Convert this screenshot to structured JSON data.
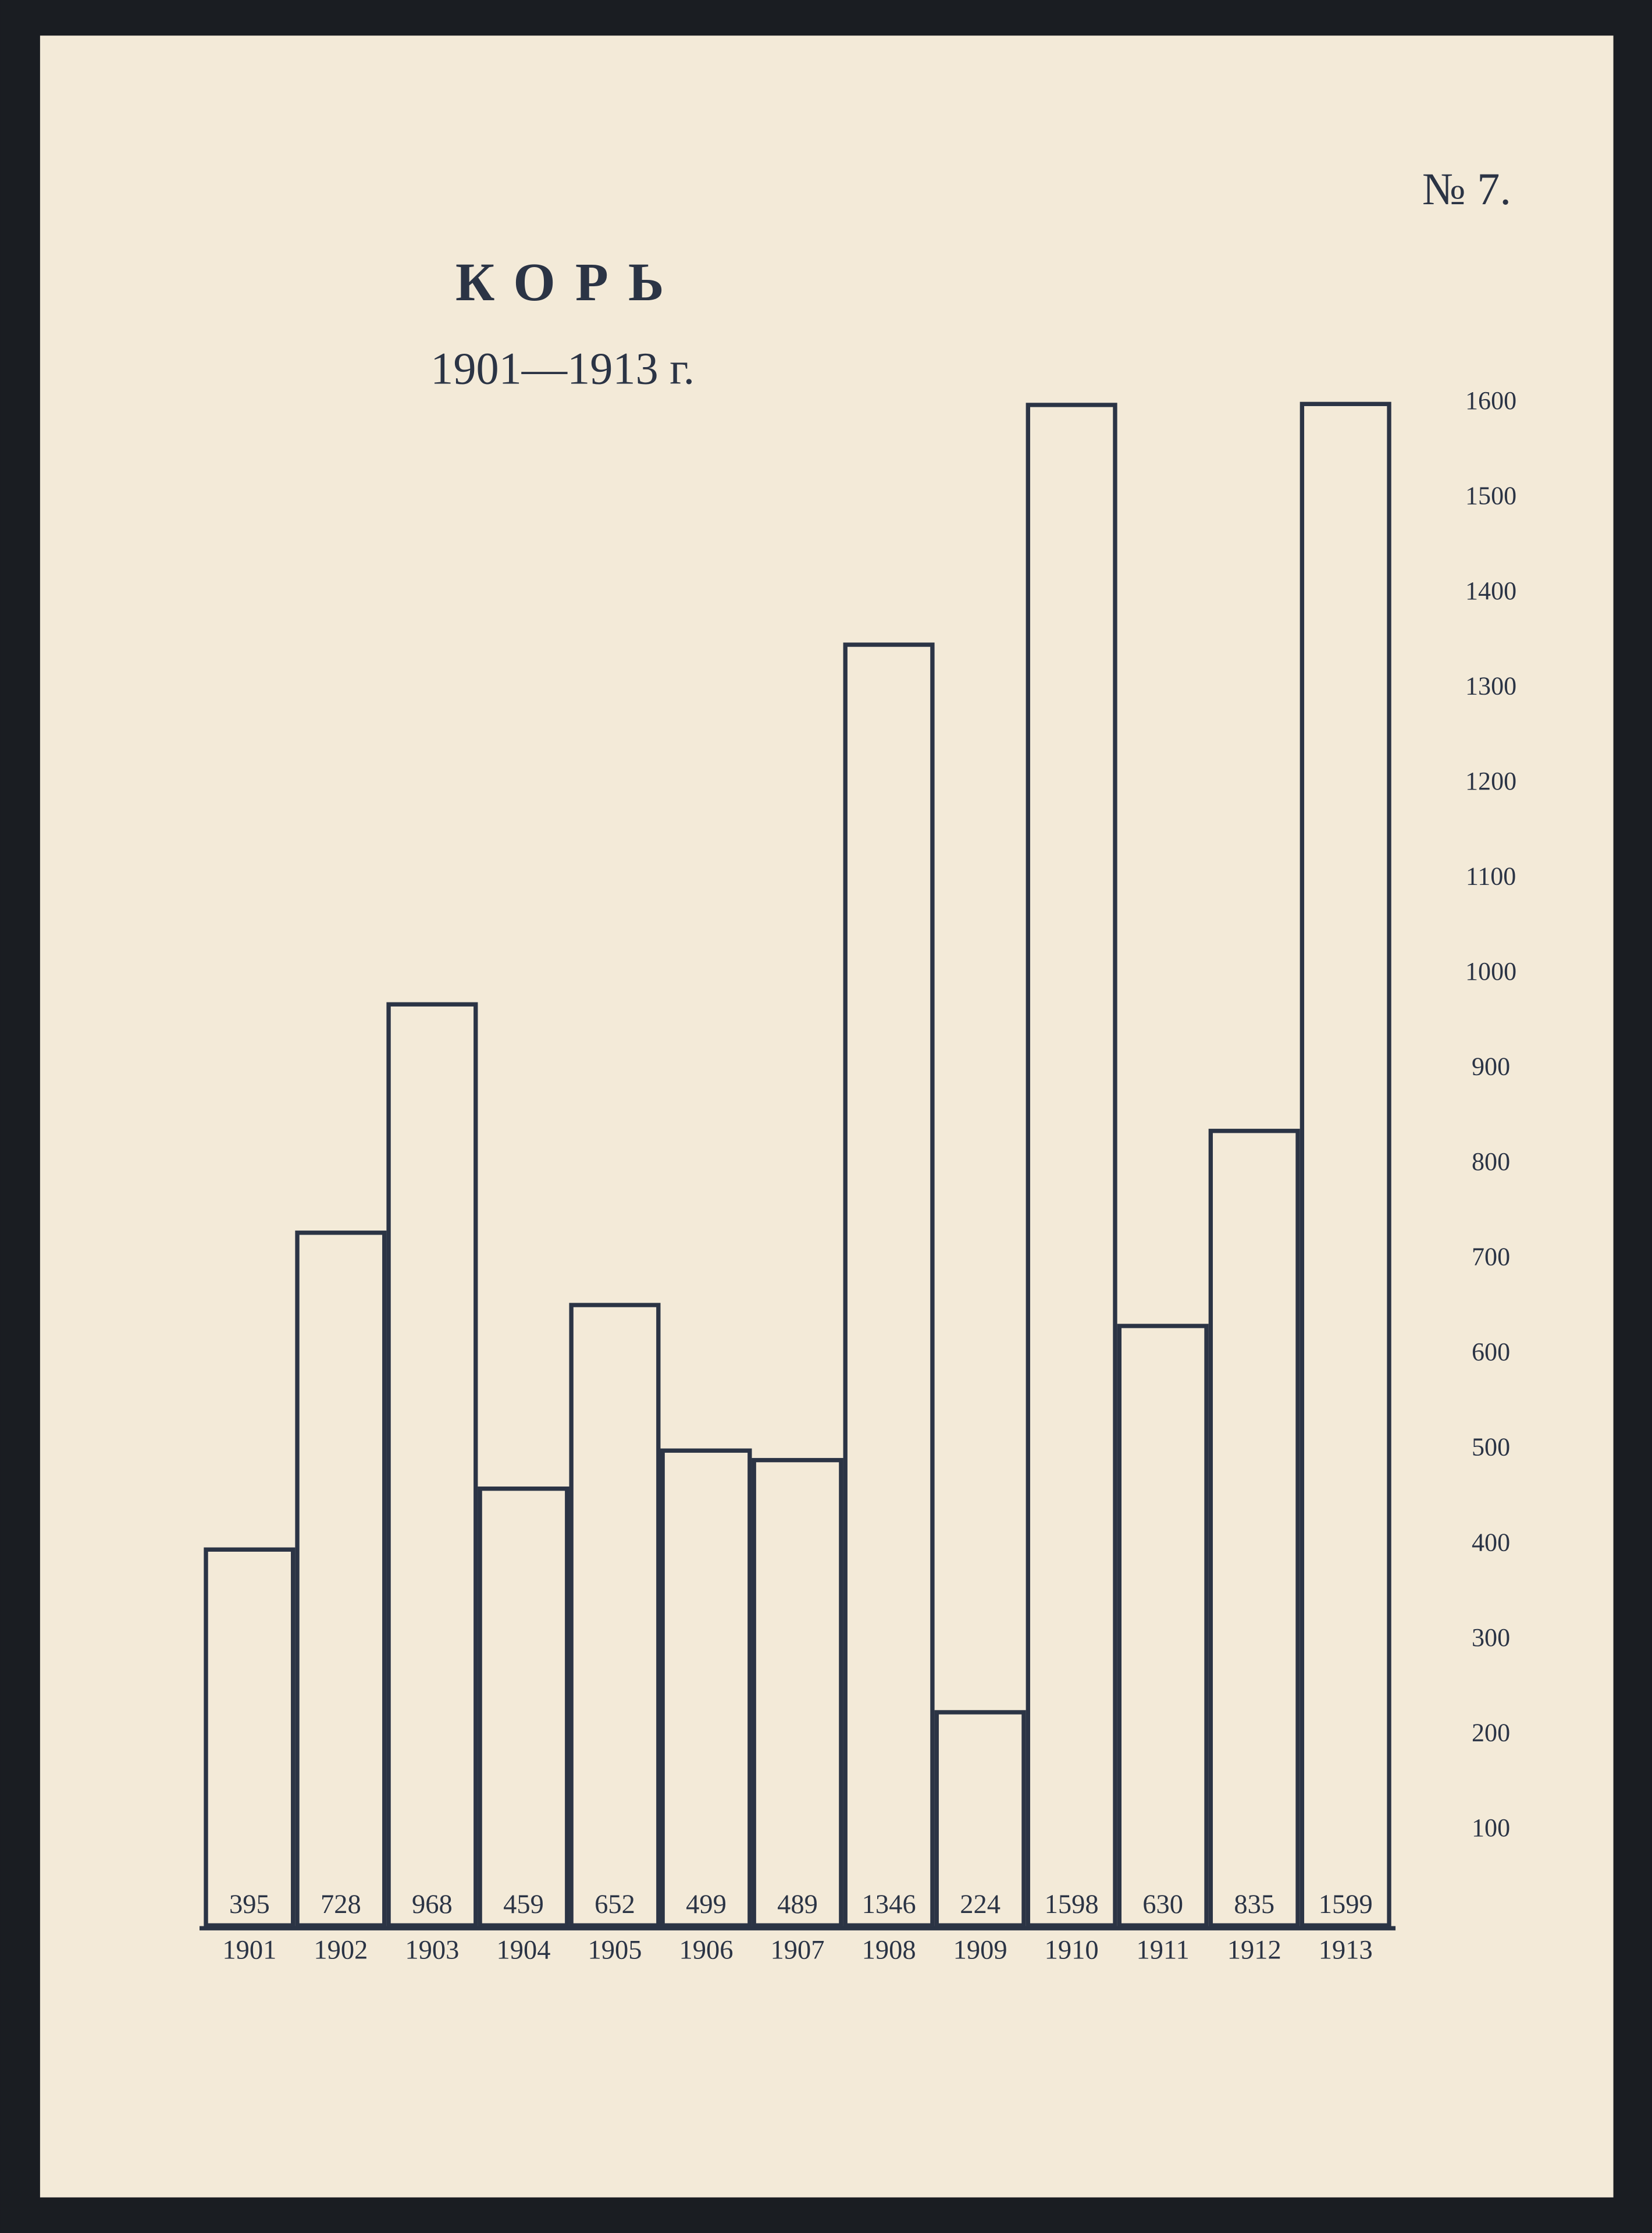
{
  "chart_data": {
    "type": "bar",
    "title": "КОРЬ",
    "subtitle": "1901—1913 г.",
    "page_number": "№ 7.",
    "categories": [
      "1901",
      "1902",
      "1903",
      "1904",
      "1905",
      "1906",
      "1907",
      "1908",
      "1909",
      "1910",
      "1911",
      "1912",
      "1913"
    ],
    "values": [
      395,
      728,
      968,
      459,
      652,
      499,
      489,
      1346,
      224,
      1598,
      630,
      835,
      1599
    ],
    "color": "#2b3445",
    "ylim": [
      0,
      1600
    ],
    "yticks": [
      100,
      200,
      300,
      400,
      500,
      600,
      700,
      800,
      900,
      1000,
      1100,
      1200,
      1300,
      1400,
      1500,
      1600
    ],
    "grid": false
  }
}
